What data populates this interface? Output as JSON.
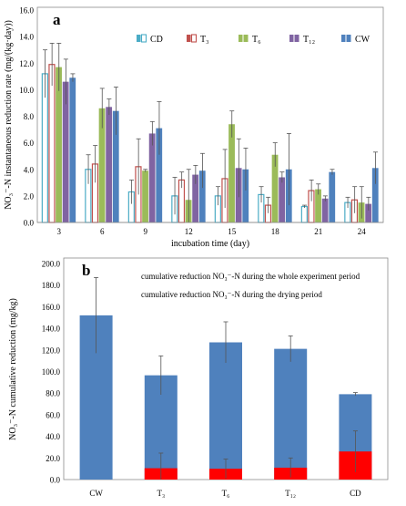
{
  "chart_data": [
    {
      "panel_label": "a",
      "type": "bar",
      "xlabel": "incubation time (day)",
      "ylabel": "NO₃⁻-N instantaneous reduction rate (mg/(kg·day))",
      "ylim": [
        0,
        16
      ],
      "yticks": [
        "0.0",
        "2.0",
        "4.0",
        "6.0",
        "8.0",
        "10.0",
        "12.0",
        "14.0",
        "16.0"
      ],
      "categories": [
        "3",
        "6",
        "9",
        "12",
        "15",
        "18",
        "21",
        "24"
      ],
      "legend_position": "top-right",
      "series": [
        {
          "name": "CD",
          "color": "#4bacc6",
          "hollow": true,
          "values": [
            11.2,
            4.0,
            2.3,
            2.0,
            2.0,
            2.1,
            1.2,
            1.5
          ],
          "errors": [
            1.8,
            1.1,
            0.9,
            1.4,
            0.7,
            0.6,
            0.1,
            0.4
          ]
        },
        {
          "name": "T₃",
          "color": "#c0504d",
          "hollow": true,
          "values": [
            11.9,
            4.4,
            4.2,
            3.2,
            3.3,
            1.3,
            2.4,
            1.7
          ],
          "errors": [
            1.6,
            1.4,
            2.1,
            0.6,
            2.2,
            0.6,
            0.8,
            1.0
          ]
        },
        {
          "name": "T₆",
          "color": "#9bbb59",
          "hollow": false,
          "values": [
            11.7,
            8.6,
            3.9,
            1.7,
            7.4,
            5.1,
            2.5,
            1.5
          ],
          "errors": [
            1.8,
            1.5,
            0.1,
            2.3,
            1.0,
            0.9,
            0.4,
            1.2
          ]
        },
        {
          "name": "T₁₂",
          "color": "#8064a2",
          "hollow": false,
          "values": [
            10.6,
            8.7,
            6.7,
            3.6,
            4.1,
            3.4,
            1.8,
            1.4
          ],
          "errors": [
            1.7,
            0.6,
            0.9,
            0.7,
            2.2,
            0.4,
            0.2,
            0.5
          ]
        },
        {
          "name": "CW",
          "color": "#4f81bd",
          "hollow": false,
          "values": [
            10.9,
            8.4,
            7.1,
            3.9,
            4.0,
            4.0,
            3.8,
            4.1
          ],
          "errors": [
            0.3,
            1.8,
            2.0,
            1.3,
            1.6,
            2.7,
            0.2,
            1.2
          ]
        }
      ]
    },
    {
      "panel_label": "b",
      "type": "bar",
      "stacked": true,
      "ylabel": "NO₃⁻-N cumulative reduction (mg/kg)",
      "ylim": [
        0,
        200
      ],
      "yticks": [
        "0.0",
        "20.0",
        "40.0",
        "60.0",
        "80.0",
        "100.0",
        "120.0",
        "140.0",
        "160.0",
        "180.0",
        "200.0"
      ],
      "categories": [
        "CW",
        "T₃",
        "T₆",
        "T₁₂",
        "CD"
      ],
      "legend_position": "top-center",
      "series": [
        {
          "name": "cumulative reduction NO₃⁻-N during the whole experiment period",
          "color": "#4f81bd",
          "values": [
            152.0,
            96.5,
            127.0,
            121.0,
            79.0
          ],
          "errors": [
            35.0,
            18.0,
            19.0,
            12.0,
            1.5
          ]
        },
        {
          "name": "cumulative reduction NO₃⁻-N during the drying period",
          "color": "#ff0000",
          "values": [
            0,
            10.5,
            10.0,
            11.0,
            26.0
          ],
          "errors": [
            0,
            14.0,
            9.0,
            9.0,
            19.0
          ]
        }
      ]
    }
  ]
}
